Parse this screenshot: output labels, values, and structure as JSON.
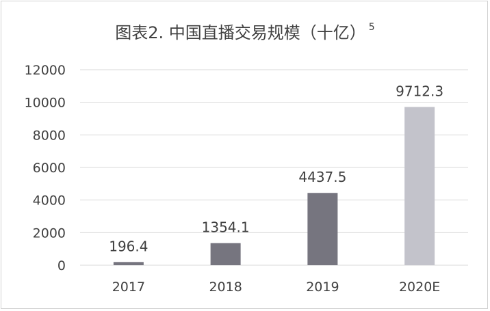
{
  "chart_data": {
    "type": "bar",
    "title": "图表2. 中国直播交易规模（十亿）",
    "title_superscript": "5",
    "categories": [
      "2017",
      "2018",
      "2019",
      "2020E"
    ],
    "values": [
      196.4,
      1354.1,
      4437.5,
      9712.3
    ],
    "value_labels": [
      "196.4",
      "1354.1",
      "4437.5",
      "9712.3"
    ],
    "ylim": [
      0,
      12000
    ],
    "yticks": [
      "0",
      "2000",
      "4000",
      "6000",
      "8000",
      "10000",
      "12000"
    ],
    "grid": true,
    "xlabel": "",
    "ylabel": ""
  },
  "colors": {
    "bar_actual": "#76757f",
    "bar_estimate": "#c3c3cb",
    "grid": "#d9d9d9",
    "text": "#404040"
  }
}
